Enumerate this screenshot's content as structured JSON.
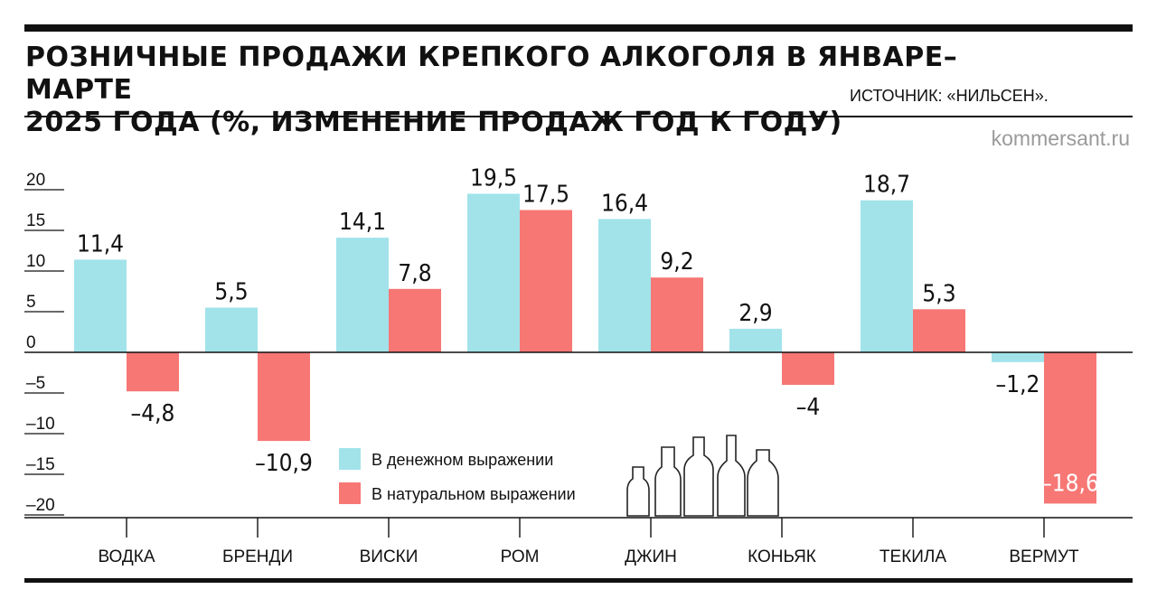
{
  "title": "РОЗНИЧНЫЕ ПРОДАЖИ КРЕПКОГО АЛКОГОЛЯ В ЯНВАРЕ–МАРТЕ\n2025 ГОДА (%, ИЗМЕНЕНИЕ ПРОДАЖ ГОД К ГОДУ)",
  "source": "ИСТОЧНИК: «НИЛЬСЕН».",
  "site": "kommersant.ru",
  "bottle_icon": "bottles-illustration",
  "colors": {
    "money": "#a2e3ea",
    "natural": "#f67774",
    "text": "#111111"
  },
  "chart_data": {
    "type": "bar",
    "categories": [
      "ВОДКА",
      "БРЕНДИ",
      "ВИСКИ",
      "РОМ",
      "ДЖИН",
      "КОНЬЯК",
      "ТЕКИЛА",
      "ВЕРМУТ"
    ],
    "series": [
      {
        "name": "В денежном выражении",
        "color": "#a2e3ea",
        "values": [
          11.4,
          5.5,
          14.1,
          19.5,
          16.4,
          2.9,
          18.7,
          -1.2
        ],
        "labels": [
          "11,4",
          "5,5",
          "14,1",
          "19,5",
          "16,4",
          "2,9",
          "18,7",
          "–1,2"
        ]
      },
      {
        "name": "В натуральном выражении",
        "color": "#f67774",
        "values": [
          -4.8,
          -10.9,
          7.8,
          17.5,
          9.2,
          -4,
          5.3,
          -18.6
        ],
        "labels": [
          "–4,8",
          "–10,9",
          "7,8",
          "17,5",
          "9,2",
          "–4",
          "5,3",
          "–18,6"
        ]
      }
    ],
    "yticks": [
      20,
      15,
      10,
      5,
      0,
      -5,
      -10,
      -15,
      -20
    ],
    "ytick_labels": [
      "20",
      "15",
      "10",
      "5",
      "0",
      "–5",
      "–10",
      "–15",
      "–20"
    ],
    "ylim": [
      -20,
      20
    ],
    "legend_position": "bottom-center",
    "grid": false
  }
}
